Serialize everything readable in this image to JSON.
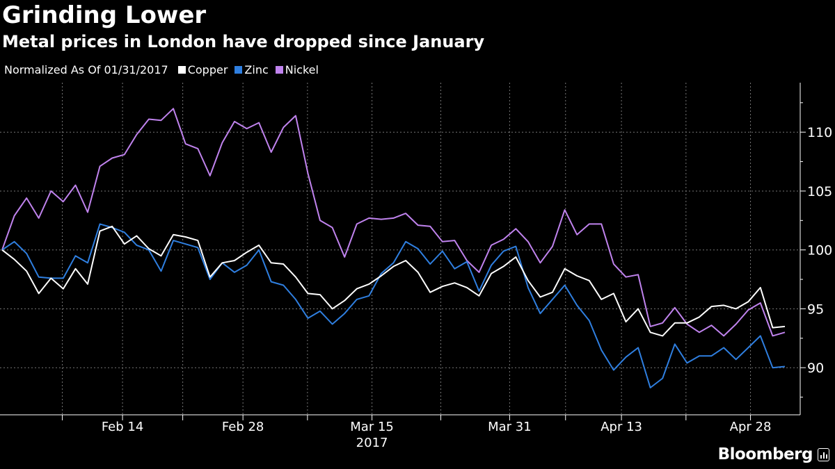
{
  "chart_data": {
    "type": "line",
    "title": "Grinding Lower",
    "subtitle": "Metal prices in London have dropped since January",
    "note": "Normalized As Of 01/31/2017",
    "start_date": "2017-01-31",
    "x_tick_labels": [
      {
        "label": "Feb 14",
        "date": "2017-02-14"
      },
      {
        "label": "Feb 28",
        "date": "2017-02-28"
      },
      {
        "label": "Mar 15",
        "date": "2017-03-15"
      },
      {
        "label": "Mar 31",
        "date": "2017-03-31"
      },
      {
        "label": "Apr 13",
        "date": "2017-04-13"
      },
      {
        "label": "Apr 28",
        "date": "2017-04-28"
      }
    ],
    "year_label": "2017",
    "y_ticks": [
      90,
      95,
      100,
      105,
      110
    ],
    "ylim": [
      86,
      114.2
    ],
    "legend_position": "top-left",
    "grid": true,
    "series": [
      {
        "name": "Copper",
        "color": "#ffffff",
        "values": [
          100,
          99.2,
          98.2,
          96.3,
          97.6,
          96.7,
          98.4,
          97.1,
          101.6,
          102.0,
          100.5,
          101.2,
          100.1,
          99.5,
          101.3,
          101.1,
          100.8,
          97.7,
          98.9,
          99.1,
          99.8,
          100.4,
          98.9,
          98.8,
          97.7,
          96.3,
          96.2,
          95.0,
          95.7,
          96.7,
          97.1,
          97.8,
          98.6,
          99.1,
          98.1,
          96.4,
          96.9,
          97.2,
          96.8,
          96.1,
          98.0,
          98.6,
          99.4,
          97.4,
          96.0,
          96.4,
          98.4,
          97.8,
          97.4,
          95.8,
          96.3,
          93.9,
          95.0,
          93.0,
          92.7,
          93.8,
          93.8,
          94.3,
          95.2,
          95.3,
          95.0,
          95.6,
          96.8,
          93.4,
          93.5
        ]
      },
      {
        "name": "Zinc",
        "color": "#2f7fe0",
        "values": [
          100,
          100.7,
          99.7,
          97.7,
          97.6,
          97.6,
          99.5,
          98.9,
          102.2,
          101.9,
          101.5,
          100.4,
          100.0,
          98.2,
          100.8,
          100.5,
          100.2,
          97.5,
          98.9,
          98.1,
          98.7,
          100.0,
          97.3,
          97.0,
          95.8,
          94.2,
          94.8,
          93.7,
          94.6,
          95.8,
          96.1,
          98.0,
          98.9,
          100.7,
          100.1,
          98.8,
          99.9,
          98.4,
          99.0,
          96.5,
          98.7,
          99.9,
          100.3,
          96.8,
          94.6,
          95.8,
          97.0,
          95.3,
          94.0,
          91.5,
          89.8,
          90.9,
          91.7,
          88.3,
          89.1,
          92.0,
          90.4,
          91.0,
          91.0,
          91.7,
          90.7,
          91.7,
          92.7,
          90.0,
          90.1
        ]
      },
      {
        "name": "Nickel",
        "color": "#c083ee",
        "values": [
          100,
          102.9,
          104.4,
          102.7,
          105.0,
          104.1,
          105.5,
          103.2,
          107.1,
          107.8,
          108.1,
          109.8,
          111.1,
          111.0,
          112.0,
          109.0,
          108.6,
          106.3,
          109.1,
          110.9,
          110.3,
          110.8,
          108.3,
          110.4,
          111.4,
          106.5,
          102.5,
          101.9,
          99.4,
          102.2,
          102.7,
          102.6,
          102.7,
          103.1,
          102.1,
          102.0,
          100.7,
          100.8,
          99.1,
          98.1,
          100.4,
          100.9,
          101.8,
          100.7,
          98.9,
          100.3,
          103.4,
          101.3,
          102.2,
          102.2,
          98.8,
          97.7,
          97.9,
          93.5,
          93.8,
          95.1,
          93.7,
          93.0,
          93.6,
          92.7,
          93.7,
          94.9,
          95.5,
          92.7,
          93.0
        ]
      }
    ]
  },
  "branding": {
    "logo_text": "Bloomberg"
  }
}
